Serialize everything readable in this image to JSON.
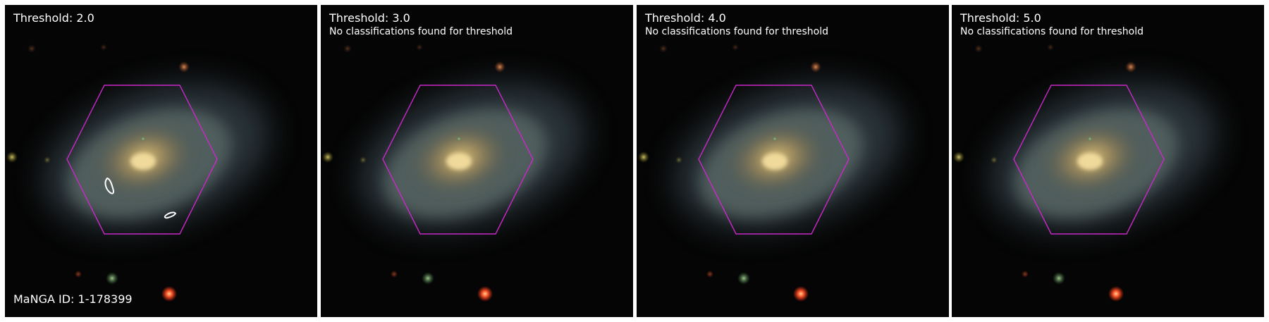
{
  "manga_id": "MaNGA ID: 1-178399",
  "colors": {
    "hexagon": "#c828c8",
    "contour": "#ffffff",
    "text": "#ffffff",
    "sky": "#050505"
  },
  "panels": [
    {
      "title": "Threshold: 2.0",
      "message": ""
    },
    {
      "title": "Threshold: 3.0",
      "message": "No classifications found for threshold"
    },
    {
      "title": "Threshold: 4.0",
      "message": "No classifications found for threshold"
    },
    {
      "title": "Threshold: 5.0",
      "message": "No classifications found for threshold"
    }
  ]
}
